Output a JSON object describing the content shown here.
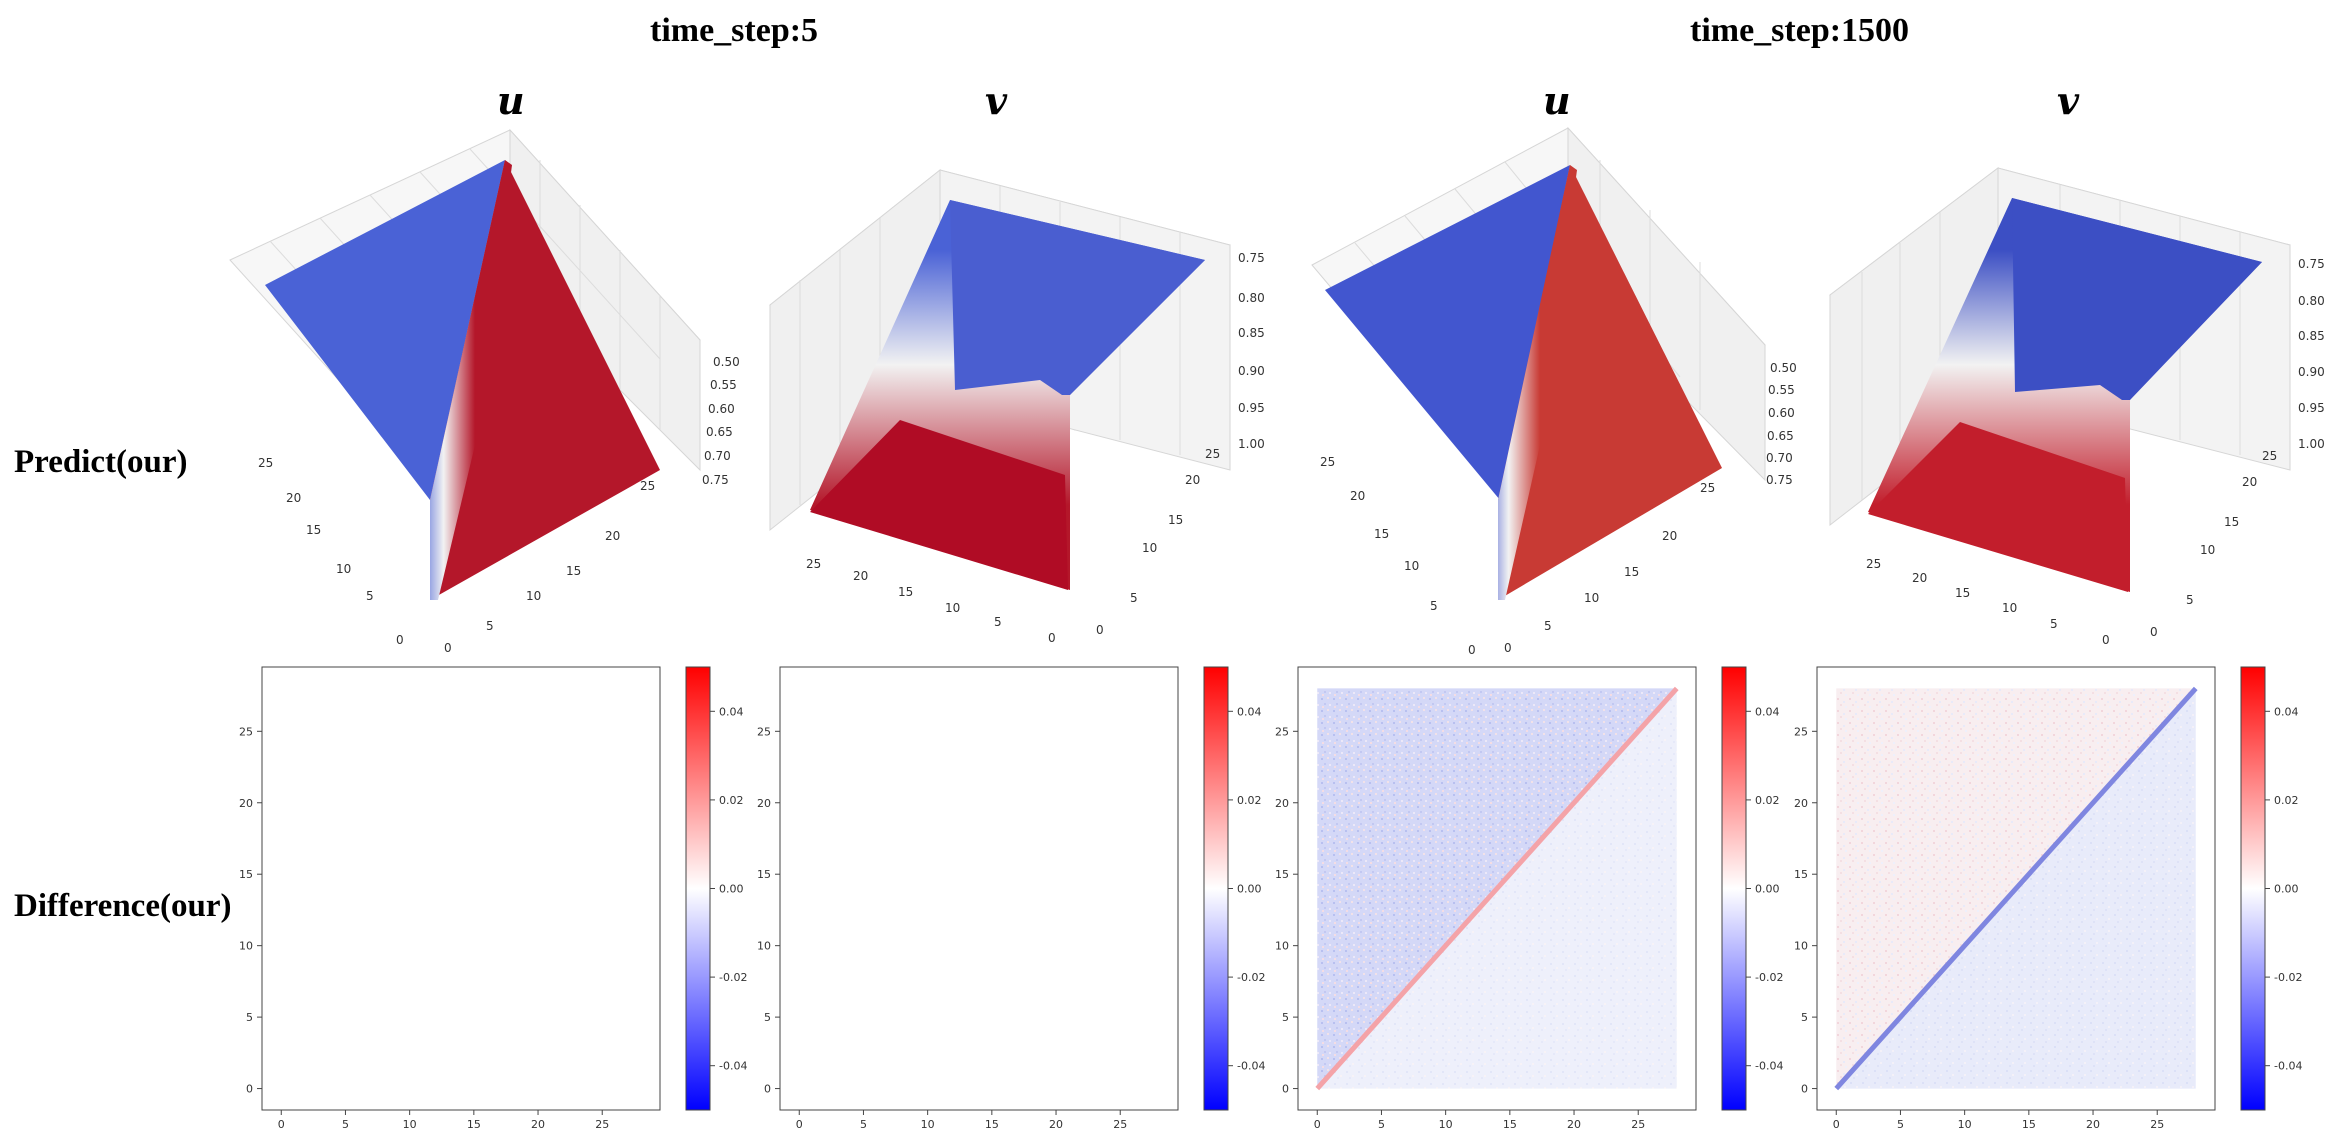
{
  "headers": {
    "time_step_left": "time_step:5",
    "time_step_right": "time_step:1500"
  },
  "columns": [
    {
      "var": "u",
      "time_step": "time_step:5"
    },
    {
      "var": "v",
      "time_step": "time_step:5"
    },
    {
      "var": "u",
      "time_step": "time_step:1500"
    },
    {
      "var": "v",
      "time_step": "time_step:1500"
    }
  ],
  "rows": {
    "predict_label": "Predict(our)",
    "difference_label": "Difference(our)"
  },
  "colors": {
    "blue": "#4a62d6",
    "red": "#b4172a",
    "colorbar_max": "#ff0000",
    "colorbar_min": "#0000ff"
  },
  "chart_data": [
    {
      "type": "surface3d",
      "panel": "predict-u-t5",
      "title": "u",
      "x_ticks": [
        "0",
        "5",
        "10",
        "15",
        "20",
        "25"
      ],
      "y_ticks": [
        "0",
        "5",
        "10",
        "15",
        "20",
        "25"
      ],
      "z_ticks": [
        "0.50",
        "0.55",
        "0.60",
        "0.65",
        "0.70",
        "0.75"
      ],
      "zlim": [
        0.5,
        0.75
      ]
    },
    {
      "type": "surface3d",
      "panel": "predict-v-t5",
      "title": "v",
      "x_ticks": [
        "0",
        "5",
        "10",
        "15",
        "20",
        "25"
      ],
      "y_ticks": [
        "0",
        "5",
        "10",
        "15",
        "20",
        "25"
      ],
      "z_ticks": [
        "0.75",
        "0.80",
        "0.85",
        "0.90",
        "0.95",
        "1.00"
      ],
      "zlim": [
        0.75,
        1.0
      ]
    },
    {
      "type": "surface3d",
      "panel": "predict-u-t1500",
      "title": "u",
      "x_ticks": [
        "0",
        "5",
        "10",
        "15",
        "20",
        "25"
      ],
      "y_ticks": [
        "0",
        "5",
        "10",
        "15",
        "20",
        "25"
      ],
      "z_ticks": [
        "0.50",
        "0.55",
        "0.60",
        "0.65",
        "0.70",
        "0.75"
      ],
      "zlim": [
        0.5,
        0.75
      ]
    },
    {
      "type": "surface3d",
      "panel": "predict-v-t1500",
      "title": "v",
      "x_ticks": [
        "0",
        "5",
        "10",
        "15",
        "20",
        "25"
      ],
      "y_ticks": [
        "0",
        "5",
        "10",
        "15",
        "20",
        "25"
      ],
      "z_ticks": [
        "0.75",
        "0.80",
        "0.85",
        "0.90",
        "0.95",
        "1.00"
      ],
      "zlim": [
        0.75,
        1.0
      ]
    },
    {
      "type": "heatmap",
      "panel": "diff-u-t5",
      "x_ticks": [
        0,
        5,
        10,
        15,
        20,
        25
      ],
      "y_ticks": [
        0,
        5,
        10,
        15,
        20,
        25
      ],
      "xlim": [
        -1.5,
        29.5
      ],
      "ylim": [
        -1.5,
        29.5
      ],
      "colorbar_ticks": [
        "0.04",
        "0.02",
        "0.00",
        "-0.02",
        "-0.04"
      ],
      "colorbar_range": [
        -0.05,
        0.05
      ],
      "pattern": "none"
    },
    {
      "type": "heatmap",
      "panel": "diff-v-t5",
      "x_ticks": [
        0,
        5,
        10,
        15,
        20,
        25
      ],
      "y_ticks": [
        0,
        5,
        10,
        15,
        20,
        25
      ],
      "xlim": [
        -1.5,
        29.5
      ],
      "ylim": [
        -1.5,
        29.5
      ],
      "colorbar_ticks": [
        "0.04",
        "0.02",
        "0.00",
        "-0.02",
        "-0.04"
      ],
      "colorbar_range": [
        -0.05,
        0.05
      ],
      "pattern": "none"
    },
    {
      "type": "heatmap",
      "panel": "diff-u-t1500",
      "x_ticks": [
        0,
        5,
        10,
        15,
        20,
        25
      ],
      "y_ticks": [
        0,
        5,
        10,
        15,
        20,
        25
      ],
      "xlim": [
        -1.5,
        29.5
      ],
      "ylim": [
        -1.5,
        29.5
      ],
      "colorbar_ticks": [
        "0.04",
        "0.02",
        "0.00",
        "-0.02",
        "-0.04"
      ],
      "colorbar_range": [
        -0.05,
        0.05
      ],
      "pattern": "upper-blue-diagonal-red"
    },
    {
      "type": "heatmap",
      "panel": "diff-v-t1500",
      "x_ticks": [
        0,
        5,
        10,
        15,
        20,
        25
      ],
      "y_ticks": [
        0,
        5,
        10,
        15,
        20,
        25
      ],
      "xlim": [
        -1.5,
        29.5
      ],
      "ylim": [
        -1.5,
        29.5
      ],
      "colorbar_ticks": [
        "0.04",
        "0.02",
        "0.00",
        "-0.02",
        "-0.04"
      ],
      "colorbar_range": [
        -0.05,
        0.05
      ],
      "pattern": "upper-pink-diagonal-blue"
    }
  ]
}
